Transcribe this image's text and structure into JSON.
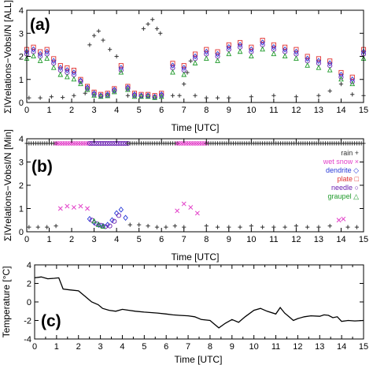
{
  "colors": {
    "rain": "#333333",
    "wet_snow": "#e23fc8",
    "dendrite": "#2a3bd8",
    "plate": "#e03030",
    "needle": "#6a1fb0",
    "graupel": "#1f9a2a",
    "line": "#000000"
  },
  "legend_symbols": {
    "rain": "+",
    "wet_snow": "×",
    "dendrite": "◇",
    "plate": "□",
    "needle": "○",
    "graupel": "△"
  },
  "chart_data": [
    {
      "panel": "(a)",
      "type": "scatter",
      "xlabel": "Time [UTC]",
      "ylabel": "ΣIVrelations−VobsI/N [ALL]",
      "xlim": [
        0,
        15
      ],
      "ylim": [
        0,
        4
      ],
      "x_ticks": [
        "0",
        "1",
        "2",
        "3",
        "4",
        "5",
        "6",
        "7",
        "8",
        "9",
        "10",
        "11",
        "12",
        "13",
        "14",
        "15"
      ],
      "y_ticks": [
        "0",
        "1",
        "2",
        "3",
        "4"
      ],
      "series": [
        {
          "name": "rain",
          "marker": "plus",
          "x": [
            0.1,
            0.6,
            1.1,
            1.6,
            2.1,
            2.6,
            2.8,
            3.0,
            3.2,
            3.4,
            3.7,
            4.0,
            4.5,
            5.2,
            5.4,
            5.6,
            5.8,
            5.95,
            6.5,
            6.8,
            7.0,
            7.15,
            7.3,
            7.5,
            8.0,
            8.5,
            9.0,
            10.0,
            11.0,
            12.0,
            13.0,
            13.5,
            14.0,
            14.5,
            15.0
          ],
          "y": [
            0.2,
            0.2,
            0.25,
            0.22,
            0.3,
            0.4,
            2.5,
            2.9,
            3.1,
            2.7,
            2.3,
            2.0,
            0.3,
            3.2,
            3.4,
            3.6,
            3.2,
            3.0,
            0.3,
            0.3,
            0.8,
            1.3,
            1.8,
            0.3,
            0.2,
            0.2,
            0.2,
            0.25,
            0.3,
            0.25,
            0.3,
            0.5,
            0.8,
            0.35,
            0.3
          ]
        },
        {
          "name": "plate",
          "marker": "square",
          "x": [
            0.0,
            0.3,
            0.6,
            0.9,
            1.2,
            1.5,
            1.8,
            2.1,
            2.4,
            2.7,
            3.0,
            3.3,
            3.6,
            3.9,
            4.2,
            4.5,
            4.8,
            5.1,
            5.4,
            5.7,
            6.0,
            6.5,
            7.0,
            7.5,
            8.0,
            8.5,
            9.0,
            9.5,
            10.0,
            10.5,
            11.0,
            11.5,
            12.0,
            12.5,
            13.0,
            13.5,
            14.0,
            14.5,
            15.0
          ],
          "y": [
            2.3,
            2.4,
            2.2,
            2.3,
            1.9,
            1.6,
            1.5,
            1.4,
            1.0,
            0.7,
            0.45,
            0.35,
            0.4,
            0.6,
            1.6,
            0.7,
            0.4,
            0.35,
            0.35,
            0.3,
            0.4,
            1.7,
            1.6,
            2.1,
            2.3,
            2.2,
            2.5,
            2.6,
            2.4,
            2.7,
            2.5,
            2.4,
            2.3,
            2.0,
            1.9,
            1.8,
            1.3,
            1.1,
            2.3
          ]
        },
        {
          "name": "dendrite",
          "marker": "diamond",
          "x": [
            0.0,
            0.3,
            0.6,
            0.9,
            1.2,
            1.5,
            1.8,
            2.1,
            2.4,
            2.7,
            3.0,
            3.3,
            3.6,
            3.9,
            4.2,
            4.5,
            4.8,
            5.1,
            5.4,
            5.7,
            6.0,
            6.5,
            7.0,
            7.5,
            8.0,
            8.5,
            9.0,
            9.5,
            10.0,
            10.5,
            11.0,
            11.5,
            12.0,
            12.5,
            13.0,
            13.5,
            14.0,
            14.5,
            15.0
          ],
          "y": [
            2.2,
            2.3,
            2.1,
            2.2,
            1.8,
            1.5,
            1.4,
            1.3,
            0.95,
            0.65,
            0.4,
            0.3,
            0.35,
            0.55,
            1.5,
            0.65,
            0.35,
            0.3,
            0.3,
            0.25,
            0.35,
            1.6,
            1.5,
            2.0,
            2.2,
            2.1,
            2.4,
            2.5,
            2.3,
            2.6,
            2.4,
            2.3,
            2.2,
            1.9,
            1.8,
            1.7,
            1.2,
            1.0,
            2.2
          ]
        },
        {
          "name": "needle",
          "marker": "circle",
          "x": [
            0.0,
            0.3,
            0.6,
            0.9,
            1.2,
            1.5,
            1.8,
            2.1,
            2.4,
            2.7,
            3.0,
            3.3,
            3.6,
            3.9,
            4.2,
            4.5,
            4.8,
            5.1,
            5.4,
            5.7,
            6.0,
            6.5,
            7.0,
            7.5,
            8.0,
            8.5,
            9.0,
            9.5,
            10.0,
            10.5,
            11.0,
            11.5,
            12.0,
            12.5,
            13.0,
            13.5,
            14.0,
            14.5,
            15.0
          ],
          "y": [
            2.1,
            2.2,
            2.0,
            2.1,
            1.7,
            1.4,
            1.3,
            1.2,
            0.9,
            0.6,
            0.35,
            0.28,
            0.3,
            0.5,
            1.4,
            0.6,
            0.3,
            0.28,
            0.28,
            0.22,
            0.3,
            1.5,
            1.4,
            1.9,
            2.1,
            2.0,
            2.3,
            2.4,
            2.2,
            2.5,
            2.3,
            2.2,
            2.1,
            1.8,
            1.7,
            1.6,
            1.1,
            0.9,
            2.1
          ]
        },
        {
          "name": "graupel",
          "marker": "triangle",
          "x": [
            0.0,
            0.3,
            0.6,
            0.9,
            1.2,
            1.5,
            1.8,
            2.1,
            2.4,
            2.7,
            3.0,
            3.3,
            3.6,
            3.9,
            4.2,
            4.5,
            4.8,
            5.1,
            5.4,
            5.7,
            6.0,
            6.5,
            7.0,
            7.5,
            8.0,
            8.5,
            9.0,
            9.5,
            10.0,
            10.5,
            11.0,
            11.5,
            12.0,
            12.5,
            13.0,
            13.5,
            14.0,
            14.5,
            15.0
          ],
          "y": [
            1.9,
            2.0,
            1.8,
            1.9,
            1.5,
            1.2,
            1.1,
            1.0,
            0.8,
            0.55,
            0.3,
            0.25,
            0.28,
            0.45,
            1.3,
            0.55,
            0.25,
            0.25,
            0.25,
            0.2,
            0.25,
            1.3,
            1.2,
            1.7,
            1.9,
            1.8,
            2.1,
            2.2,
            2.0,
            2.3,
            2.1,
            2.0,
            1.9,
            1.6,
            1.5,
            1.4,
            1.0,
            0.8,
            1.9
          ]
        }
      ]
    },
    {
      "panel": "(b)",
      "type": "scatter",
      "xlabel": "Time [UTC]",
      "ylabel": "ΣIVrelations−VobsI/N [Min]",
      "xlim": [
        0,
        15
      ],
      "ylim": [
        0,
        4
      ],
      "x_ticks": [
        "0",
        "1",
        "2",
        "3",
        "4",
        "5",
        "6",
        "7",
        "8",
        "9",
        "10",
        "11",
        "12",
        "13",
        "14",
        "15"
      ],
      "y_ticks": [
        "0",
        "1",
        "2",
        "3",
        "4"
      ],
      "legend": [
        "rain +",
        "wet snow ×",
        "dendrite ◇",
        "plate □",
        "needle ○",
        "graupel △"
      ],
      "series": [
        {
          "name": "rain",
          "marker": "plus",
          "x": [
            0.1,
            0.5,
            0.9,
            1.3,
            4.6,
            5.0,
            5.4,
            5.8,
            6.2,
            6.6,
            7.0,
            8.0,
            8.5,
            9.0,
            9.5,
            10.0,
            10.5,
            11.0,
            11.5,
            12.0,
            12.5,
            13.0,
            13.5,
            14.3,
            14.7
          ],
          "y": [
            0.2,
            0.2,
            0.2,
            0.25,
            0.3,
            0.3,
            0.25,
            0.2,
            0.2,
            0.25,
            0.2,
            0.25,
            0.2,
            0.2,
            0.2,
            0.25,
            0.2,
            0.2,
            0.2,
            0.25,
            0.2,
            0.2,
            0.25,
            0.2,
            0.2
          ]
        },
        {
          "name": "wet snow",
          "marker": "x",
          "x": [
            1.5,
            1.8,
            2.1,
            2.4,
            2.7,
            6.7,
            7.0,
            7.3,
            7.6,
            13.9,
            14.1
          ],
          "y": [
            1.0,
            1.1,
            1.05,
            1.1,
            1.0,
            0.9,
            1.2,
            1.05,
            0.8,
            0.5,
            0.55
          ]
        },
        {
          "name": "dendrite",
          "marker": "diamond",
          "x": [
            2.8,
            3.0,
            3.2,
            3.4,
            3.6,
            3.8,
            4.0,
            4.2,
            4.4
          ],
          "y": [
            0.55,
            0.4,
            0.3,
            0.25,
            0.3,
            0.5,
            0.8,
            0.95,
            0.6
          ]
        },
        {
          "name": "needle",
          "marker": "circle",
          "x": [
            2.9,
            3.1,
            3.3,
            3.5,
            3.7,
            3.9,
            4.1
          ],
          "y": [
            0.5,
            0.35,
            0.28,
            0.22,
            0.25,
            0.45,
            0.7
          ]
        },
        {
          "name": "graupel",
          "marker": "triangle",
          "x": [
            3.0,
            3.2,
            3.4
          ],
          "y": [
            0.45,
            0.3,
            0.22
          ]
        }
      ],
      "class_band": {
        "y": 3.8,
        "segments": [
          {
            "class": "rain",
            "x_start": 0,
            "x_end": 1.3
          },
          {
            "class": "wet snow",
            "x_start": 1.3,
            "x_end": 2.8
          },
          {
            "class": "needle",
            "x_start": 2.8,
            "x_end": 4.5
          },
          {
            "class": "rain",
            "x_start": 4.5,
            "x_end": 6.7
          },
          {
            "class": "wet snow",
            "x_start": 6.7,
            "x_end": 8.0
          },
          {
            "class": "rain",
            "x_start": 8.0,
            "x_end": 15
          }
        ]
      }
    },
    {
      "panel": "(c)",
      "type": "line",
      "xlabel": "Time [UTC]",
      "ylabel": "Temperature [°C]",
      "xlim": [
        0,
        15
      ],
      "ylim": [
        -4,
        4
      ],
      "x_ticks": [
        "0",
        "0.5",
        "1",
        "1.5",
        "2",
        "2.5",
        "3",
        "3.5",
        "4",
        "4.5",
        "5",
        "5.5",
        "6",
        "6.5",
        "7",
        "7.5",
        "8",
        "8.5",
        "9",
        "9.5",
        "10",
        "10.5",
        "11",
        "11.5",
        "12",
        "12.5",
        "13",
        "13.5",
        "14",
        "14.5",
        "15"
      ],
      "y_ticks": [
        "-4",
        "-2",
        "0",
        "2",
        "4"
      ],
      "series": [
        {
          "name": "temperature",
          "x": [
            0,
            0.3,
            0.6,
            0.9,
            1.1,
            1.3,
            1.6,
            2.0,
            2.3,
            2.6,
            2.9,
            3.1,
            3.4,
            3.7,
            4.0,
            4.3,
            4.6,
            5.0,
            5.3,
            5.6,
            6.0,
            6.3,
            6.6,
            7.0,
            7.3,
            7.6,
            8.0,
            8.2,
            8.4,
            8.7,
            9.0,
            9.3,
            9.6,
            10.0,
            10.3,
            10.6,
            11.0,
            11.2,
            11.4,
            11.6,
            11.8,
            12.0,
            12.3,
            12.6,
            13.0,
            13.2,
            13.4,
            13.6,
            13.8,
            14.0,
            14.3,
            14.6,
            15.0
          ],
          "y": [
            2.6,
            2.7,
            2.5,
            2.55,
            2.6,
            1.4,
            1.3,
            1.2,
            0.6,
            0.0,
            -0.3,
            -0.7,
            -0.9,
            -1.0,
            -0.8,
            -0.9,
            -1.0,
            -1.1,
            -1.15,
            -1.2,
            -1.3,
            -1.4,
            -1.45,
            -1.5,
            -1.6,
            -1.9,
            -2.0,
            -2.4,
            -2.8,
            -2.3,
            -1.9,
            -2.2,
            -1.6,
            -0.9,
            -0.7,
            -1.0,
            -1.3,
            -0.6,
            -1.2,
            -1.6,
            -2.0,
            -1.8,
            -1.6,
            -1.5,
            -1.55,
            -1.4,
            -1.45,
            -1.7,
            -1.6,
            -2.1,
            -2.0,
            -2.05,
            -2.0
          ]
        }
      ]
    }
  ]
}
